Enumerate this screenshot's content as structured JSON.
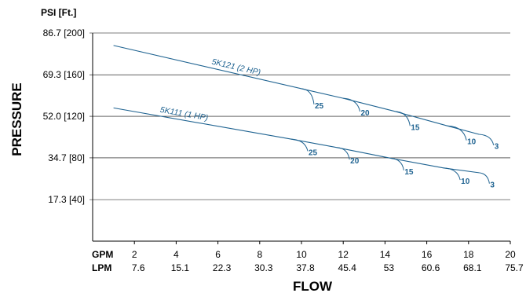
{
  "chart_data": {
    "type": "line",
    "title": "",
    "xlabel": "FLOW",
    "ylabel": "PRESSURE",
    "y_unit_label": "PSI [Ft.]",
    "x_unit_labels": [
      "GPM",
      "LPM"
    ],
    "xlim": [
      0,
      20
    ],
    "ylim": [
      0,
      86.7
    ],
    "y_ticks": [
      {
        "value": 17.3,
        "label": "17.3 [40]"
      },
      {
        "value": 34.7,
        "label": "34.7 [80]"
      },
      {
        "value": 52.0,
        "label": "52.0 [120]"
      },
      {
        "value": 69.3,
        "label": "69.3 [160]"
      },
      {
        "value": 86.7,
        "label": "86.7 [200]"
      }
    ],
    "x_ticks": [
      {
        "value": 2,
        "gpm": "2",
        "lpm": "7.6"
      },
      {
        "value": 4,
        "gpm": "4",
        "lpm": "15.1"
      },
      {
        "value": 6,
        "gpm": "6",
        "lpm": "22.3"
      },
      {
        "value": 8,
        "gpm": "8",
        "lpm": "30.3"
      },
      {
        "value": 10,
        "gpm": "10",
        "lpm": "37.8"
      },
      {
        "value": 12,
        "gpm": "12",
        "lpm": "45.4"
      },
      {
        "value": 14,
        "gpm": "14",
        "lpm": "53"
      },
      {
        "value": 16,
        "gpm": "16",
        "lpm": "60.6"
      },
      {
        "value": 18,
        "gpm": "18",
        "lpm": "68.1"
      },
      {
        "value": 20,
        "gpm": "20",
        "lpm": "75.7"
      }
    ],
    "grid": true,
    "colors": {
      "curve": "#1f6391",
      "grid": "#000000",
      "axis": "#000000"
    },
    "series": [
      {
        "name": "5K121 (2 HP)",
        "x": [
          1,
          10,
          12,
          14.5,
          17,
          18.5
        ],
        "y": [
          81.5,
          63.5,
          59.5,
          54,
          48,
          44.5
        ],
        "branches": [
          {
            "label": "25",
            "x": 10,
            "y": 63.5,
            "end_x": 10.6,
            "end_y": 57
          },
          {
            "label": "20",
            "x": 12,
            "y": 59.5,
            "end_x": 12.8,
            "end_y": 54
          },
          {
            "label": "15",
            "x": 14.5,
            "y": 54,
            "end_x": 15.2,
            "end_y": 48
          },
          {
            "label": "10",
            "x": 17,
            "y": 48,
            "end_x": 17.9,
            "end_y": 42
          },
          {
            "label": "3",
            "x": 18.5,
            "y": 44.5,
            "end_x": 19.2,
            "end_y": 40
          }
        ]
      },
      {
        "name": "5K111 (1 HP)",
        "x": [
          1,
          9.5,
          11.7,
          14.3,
          16.8,
          18.5
        ],
        "y": [
          55.5,
          42.5,
          39,
          34.5,
          30.5,
          28.5
        ],
        "branches": [
          {
            "label": "25",
            "x": 9.5,
            "y": 42.5,
            "end_x": 10.3,
            "end_y": 37.5
          },
          {
            "label": "20",
            "x": 11.7,
            "y": 39,
            "end_x": 12.3,
            "end_y": 34
          },
          {
            "label": "15",
            "x": 14.3,
            "y": 34.5,
            "end_x": 14.9,
            "end_y": 29.5
          },
          {
            "label": "10",
            "x": 16.8,
            "y": 30.5,
            "end_x": 17.6,
            "end_y": 25.5
          },
          {
            "label": "3",
            "x": 18.5,
            "y": 28.5,
            "end_x": 19,
            "end_y": 24
          }
        ]
      }
    ]
  }
}
